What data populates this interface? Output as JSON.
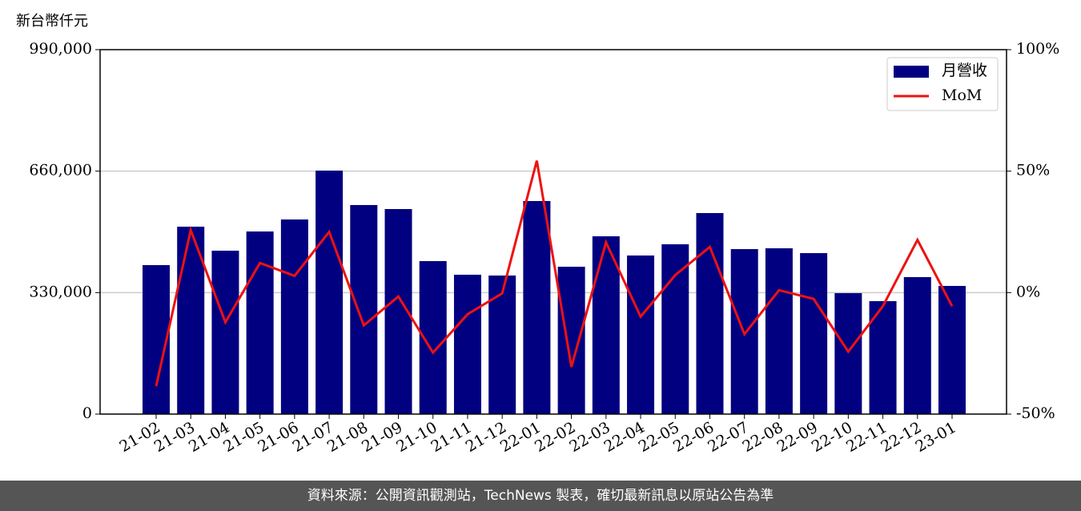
{
  "chart_data": {
    "type": "bar",
    "unit_label": "新台幣仟元",
    "categories": [
      "21-02",
      "21-03",
      "21-04",
      "21-05",
      "21-06",
      "21-07",
      "21-08",
      "21-09",
      "21-10",
      "21-11",
      "21-12",
      "22-01",
      "22-02",
      "22-03",
      "22-04",
      "22-05",
      "22-06",
      "22-07",
      "22-08",
      "22-09",
      "22-10",
      "22-11",
      "22-12",
      "23-01"
    ],
    "series": [
      {
        "name": "月營收",
        "type": "bar",
        "color": "#000080",
        "values": [
          404700,
          509100,
          443900,
          496100,
          528700,
          661400,
          567900,
          557000,
          415600,
          378600,
          376400,
          578800,
          400300,
          483000,
          430800,
          461300,
          546100,
          448200,
          450400,
          437300,
          328500,
          306800,
          372100,
          348100
        ]
      },
      {
        "name": "MoM",
        "type": "line",
        "axis": "y2",
        "color": "#ee1111",
        "values": [
          -38.5,
          25.7,
          -12.2,
          12.2,
          6.9,
          25.0,
          -13.5,
          -1.6,
          -24.7,
          -8.9,
          -0.3,
          54.3,
          -30.6,
          20.7,
          -9.9,
          7.2,
          18.8,
          -17.1,
          1.0,
          -2.6,
          -24.3,
          -5.6,
          21.7,
          -5.6
        ]
      }
    ],
    "ylim": [
      0,
      990000
    ],
    "yticks": [
      0,
      {
        "value": 330000,
        "label": "330,000"
      },
      {
        "value": 660000,
        "label": "660,000"
      },
      {
        "value": 990000,
        "label": "990,000"
      }
    ],
    "y2lim": [
      -50,
      100
    ],
    "y2ticks": [
      {
        "value": -50,
        "label": "-50%"
      },
      {
        "value": 0,
        "label": "0%"
      },
      {
        "value": 50,
        "label": "50%"
      },
      {
        "value": 100,
        "label": "100%"
      }
    ],
    "grid": true,
    "legend": "upper right",
    "footer": "資料來源：公開資訊觀測站，TechNews 製表，確切最新訊息以原站公告為準"
  }
}
